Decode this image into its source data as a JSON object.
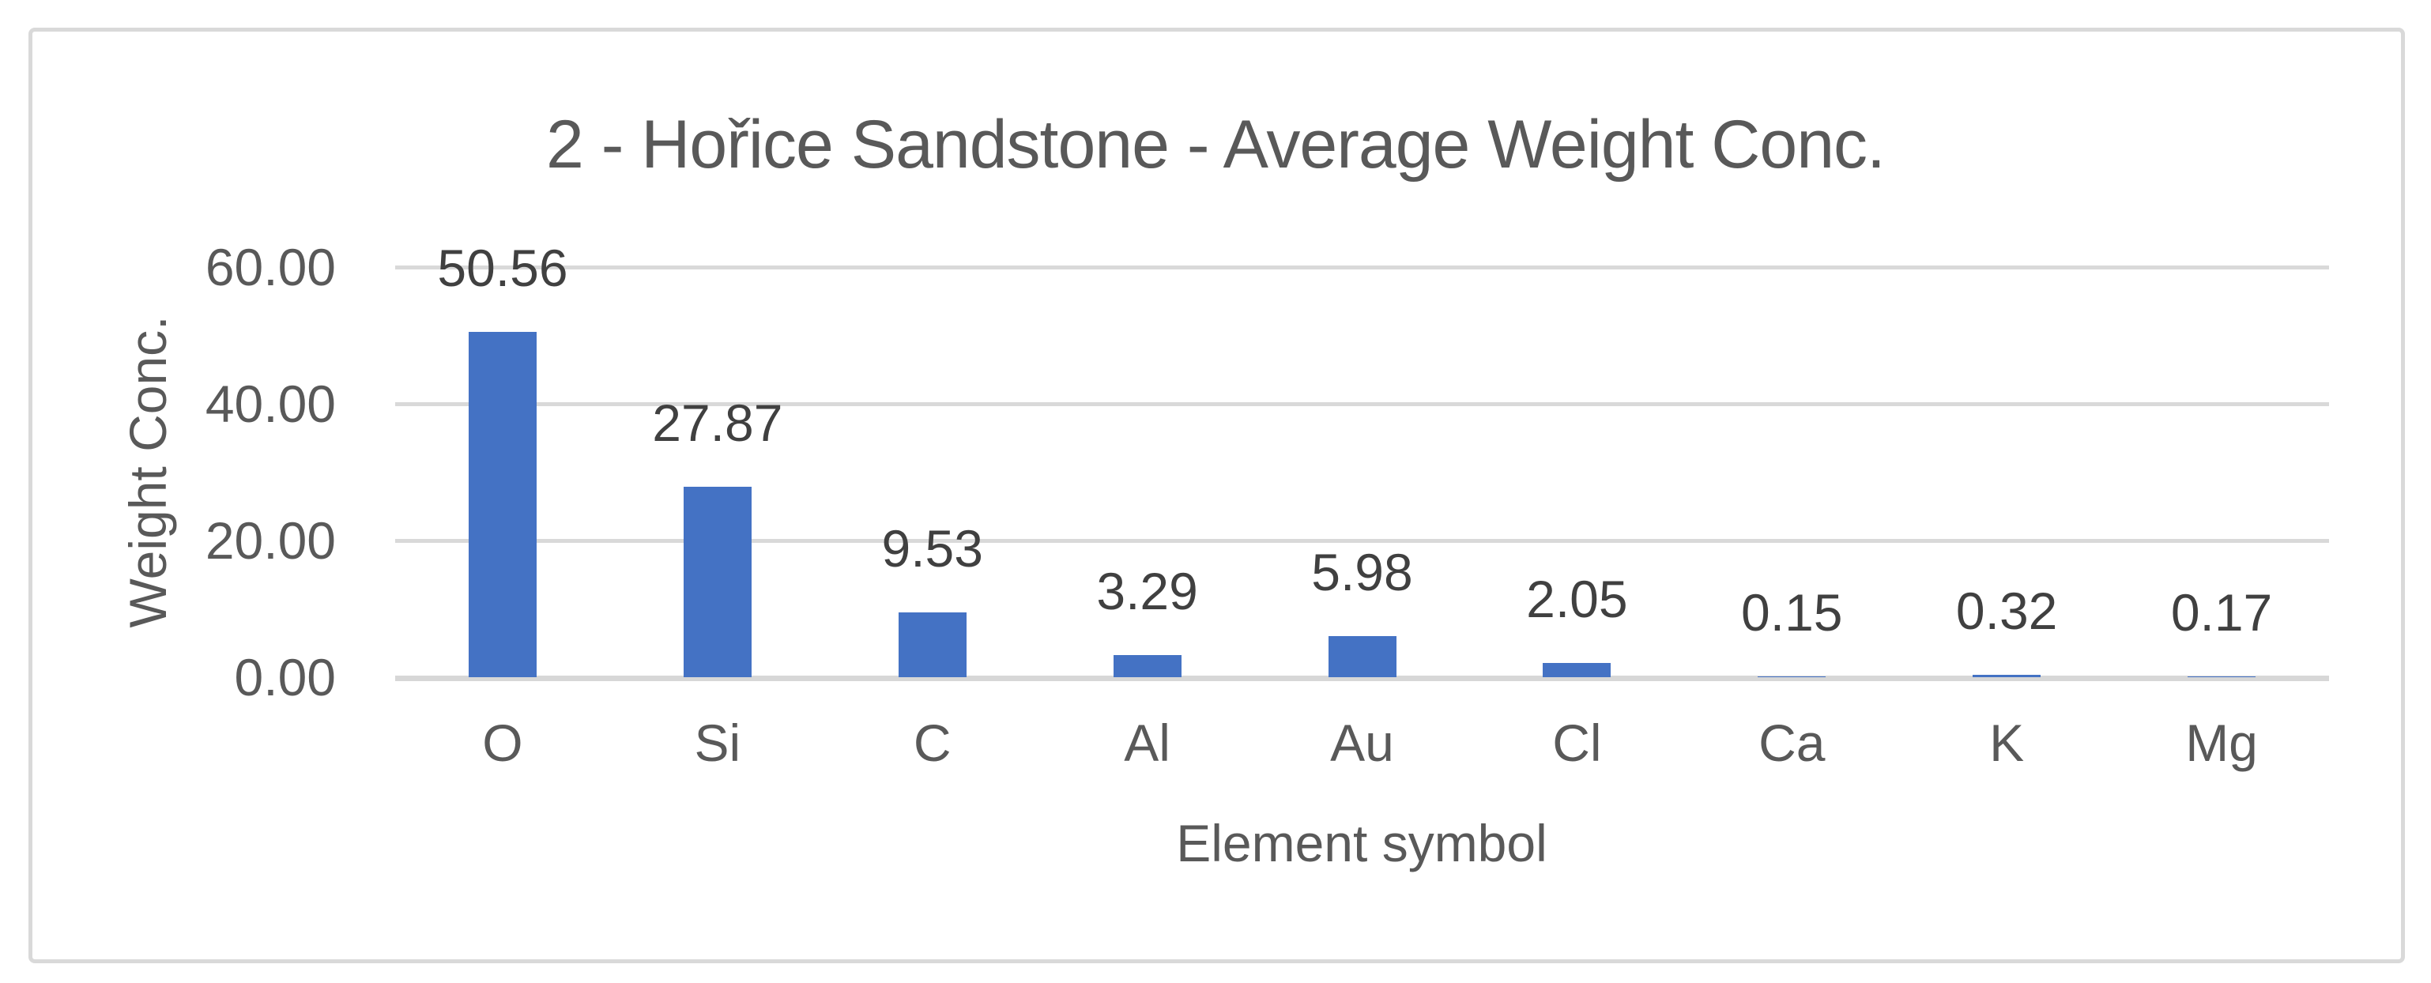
{
  "chart_data": {
    "type": "bar",
    "title": "2 - Hořice Sandstone - Average Weight Conc.",
    "xlabel": "Element symbol",
    "ylabel": "Weight Conc.",
    "categories": [
      "O",
      "Si",
      "C",
      "Al",
      "Au",
      "Cl",
      "Ca",
      "K",
      "Mg"
    ],
    "values": [
      50.56,
      27.87,
      9.53,
      3.29,
      5.98,
      2.05,
      0.15,
      0.32,
      0.17
    ],
    "data_labels": [
      "50.56",
      "27.87",
      "9.53",
      "3.29",
      "5.98",
      "2.05",
      "0.15",
      "0.32",
      "0.17"
    ],
    "yticks": [
      {
        "value": 0,
        "label": "0.00"
      },
      {
        "value": 20,
        "label": "20.00"
      },
      {
        "value": 40,
        "label": "40.00"
      },
      {
        "value": 60,
        "label": "60.00"
      }
    ],
    "ylim": [
      0,
      60
    ],
    "grid": true,
    "legend_position": "none",
    "bar_color": "#4472C4",
    "gridline_color": "#D9D9D9",
    "axis_text_color": "#595959",
    "data_label_color": "#404040",
    "frame_border_color": "#D9D9D9"
  }
}
